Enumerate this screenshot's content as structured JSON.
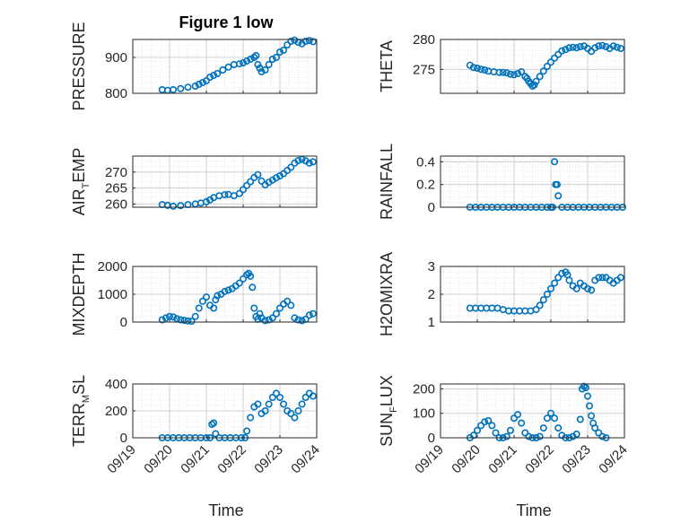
{
  "figure": {
    "title": "Figure 1 low",
    "x_label": "Time",
    "x_ticks": [
      "09/19",
      "09/20",
      "09/21",
      "09/22",
      "09/23",
      "09/24"
    ],
    "marker_color": "#0072bd"
  },
  "chart_data": [
    {
      "type": "scatter",
      "ylabel_main": "PRESSURE",
      "ylabel_sub": "",
      "ylabel_tail": "",
      "xlim": [
        0,
        5
      ],
      "ylim": [
        800,
        950
      ],
      "yticks": [
        "800",
        "900"
      ],
      "ytick_values": [
        800,
        900
      ],
      "x": [
        0.8,
        0.95,
        1.1,
        1.3,
        1.5,
        1.7,
        1.8,
        1.9,
        2.0,
        2.1,
        2.2,
        2.3,
        2.45,
        2.6,
        2.75,
        2.9,
        3.0,
        3.1,
        3.2,
        3.3,
        3.35,
        3.4,
        3.45,
        3.5,
        3.6,
        3.7,
        3.8,
        3.9,
        4.0,
        4.1,
        4.2,
        4.3,
        4.4,
        4.5,
        4.6,
        4.7,
        4.8,
        4.9
      ],
      "y": [
        810,
        808,
        810,
        813,
        817,
        820,
        825,
        830,
        835,
        845,
        850,
        855,
        865,
        873,
        880,
        882,
        885,
        890,
        895,
        900,
        905,
        880,
        870,
        860,
        865,
        880,
        895,
        900,
        915,
        920,
        935,
        945,
        948,
        942,
        938,
        945,
        947,
        944
      ]
    },
    {
      "type": "scatter",
      "ylabel_main": "THETA",
      "ylabel_sub": "",
      "ylabel_tail": "",
      "xlim": [
        0,
        5
      ],
      "ylim": [
        271,
        280
      ],
      "yticks": [
        "275",
        "280"
      ],
      "ytick_values": [
        275,
        280
      ],
      "x": [
        0.8,
        0.9,
        1.0,
        1.1,
        1.2,
        1.3,
        1.45,
        1.6,
        1.7,
        1.8,
        1.9,
        2.0,
        2.1,
        2.2,
        2.3,
        2.35,
        2.4,
        2.45,
        2.5,
        2.55,
        2.6,
        2.7,
        2.8,
        2.9,
        3.0,
        3.1,
        3.2,
        3.3,
        3.4,
        3.5,
        3.6,
        3.7,
        3.8,
        3.9,
        4.0,
        4.1,
        4.2,
        4.3,
        4.4,
        4.5,
        4.6,
        4.7,
        4.8,
        4.9
      ],
      "y": [
        275.7,
        275.3,
        275.2,
        275.0,
        274.9,
        274.7,
        274.6,
        274.5,
        274.5,
        274.4,
        274.2,
        274.1,
        274.3,
        274.6,
        273.8,
        273.5,
        273.0,
        272.6,
        272.2,
        272.4,
        273.0,
        273.8,
        274.7,
        275.5,
        276.2,
        276.9,
        277.5,
        278.1,
        278.3,
        278.6,
        278.7,
        278.6,
        278.8,
        278.9,
        278.5,
        278.0,
        278.6,
        278.9,
        279.0,
        278.8,
        278.5,
        278.9,
        278.7,
        278.5
      ]
    },
    {
      "type": "scatter",
      "ylabel_main": "AIR",
      "ylabel_sub": "T",
      "ylabel_tail": "EMP",
      "xlim": [
        0,
        5
      ],
      "ylim": [
        259,
        275
      ],
      "yticks": [
        "260",
        "265",
        "270"
      ],
      "ytick_values": [
        260,
        265,
        270
      ],
      "x": [
        0.8,
        0.95,
        1.1,
        1.3,
        1.5,
        1.7,
        1.85,
        2.0,
        2.1,
        2.2,
        2.35,
        2.5,
        2.6,
        2.75,
        2.9,
        3.0,
        3.1,
        3.2,
        3.3,
        3.4,
        3.5,
        3.6,
        3.7,
        3.8,
        3.9,
        4.0,
        4.1,
        4.2,
        4.3,
        4.4,
        4.5,
        4.6,
        4.7,
        4.8,
        4.9
      ],
      "y": [
        259.8,
        259.6,
        259.3,
        259.5,
        259.8,
        260.0,
        260.3,
        260.7,
        261.3,
        262.0,
        262.6,
        262.9,
        263.0,
        262.6,
        263.3,
        264.5,
        265.8,
        267.0,
        268.3,
        269.2,
        267.2,
        266.0,
        266.8,
        267.5,
        268.2,
        268.8,
        269.5,
        270.5,
        271.5,
        272.8,
        273.6,
        274.0,
        273.5,
        272.8,
        273.2
      ]
    },
    {
      "type": "scatter",
      "ylabel_main": "RAINFALL",
      "ylabel_sub": "",
      "ylabel_tail": "",
      "xlim": [
        0,
        5
      ],
      "ylim": [
        0,
        0.45
      ],
      "yticks": [
        "0",
        "0.2",
        "0.4"
      ],
      "ytick_values": [
        0,
        0.2,
        0.4
      ],
      "x": [
        0.8,
        0.95,
        1.1,
        1.25,
        1.4,
        1.55,
        1.7,
        1.85,
        2.0,
        2.15,
        2.3,
        2.45,
        2.6,
        2.75,
        2.9,
        3.0,
        3.05,
        3.1,
        3.13,
        3.17,
        3.2,
        3.3,
        3.45,
        3.6,
        3.75,
        3.9,
        4.05,
        4.2,
        4.35,
        4.5,
        4.65,
        4.8,
        4.95
      ],
      "y": [
        0,
        0,
        0,
        0,
        0,
        0,
        0,
        0,
        0,
        0,
        0,
        0,
        0,
        0,
        0,
        0,
        0,
        0.4,
        0.2,
        0.2,
        0.1,
        0,
        0,
        0,
        0,
        0,
        0,
        0,
        0,
        0,
        0,
        0,
        0
      ]
    },
    {
      "type": "scatter",
      "ylabel_main": "MIXDEPTH",
      "ylabel_sub": "",
      "ylabel_tail": "",
      "xlim": [
        0,
        5
      ],
      "ylim": [
        0,
        2000
      ],
      "yticks": [
        "0",
        "1000",
        "2000"
      ],
      "ytick_values": [
        0,
        1000,
        2000
      ],
      "x": [
        0.8,
        0.9,
        1.0,
        1.1,
        1.2,
        1.3,
        1.4,
        1.5,
        1.6,
        1.7,
        1.8,
        1.9,
        2.0,
        2.1,
        2.2,
        2.25,
        2.3,
        2.4,
        2.5,
        2.6,
        2.7,
        2.8,
        2.9,
        3.0,
        3.1,
        3.15,
        3.2,
        3.25,
        3.3,
        3.35,
        3.4,
        3.45,
        3.5,
        3.6,
        3.7,
        3.8,
        3.9,
        4.0,
        4.1,
        4.2,
        4.3,
        4.4,
        4.5,
        4.6,
        4.7,
        4.8,
        4.9
      ],
      "y": [
        80,
        150,
        200,
        180,
        120,
        80,
        60,
        40,
        30,
        200,
        500,
        750,
        900,
        600,
        500,
        800,
        950,
        1000,
        1100,
        1150,
        1200,
        1300,
        1400,
        1550,
        1700,
        1750,
        1650,
        1250,
        500,
        200,
        100,
        300,
        150,
        50,
        80,
        150,
        300,
        500,
        650,
        750,
        600,
        150,
        80,
        50,
        100,
        250,
        300
      ]
    },
    {
      "type": "scatter",
      "ylabel_main": "H2OMIXRA",
      "ylabel_sub": "",
      "ylabel_tail": "",
      "xlim": [
        0,
        5
      ],
      "ylim": [
        1,
        3
      ],
      "yticks": [
        "1",
        "2",
        "3"
      ],
      "ytick_values": [
        1,
        2,
        3
      ],
      "x": [
        0.8,
        0.95,
        1.1,
        1.25,
        1.4,
        1.55,
        1.7,
        1.85,
        2.0,
        2.15,
        2.3,
        2.45,
        2.6,
        2.7,
        2.8,
        2.9,
        3.0,
        3.1,
        3.2,
        3.3,
        3.4,
        3.45,
        3.5,
        3.6,
        3.7,
        3.8,
        3.9,
        4.0,
        4.1,
        4.2,
        4.3,
        4.4,
        4.5,
        4.6,
        4.7,
        4.8,
        4.9
      ],
      "y": [
        1.5,
        1.5,
        1.5,
        1.5,
        1.5,
        1.5,
        1.45,
        1.4,
        1.4,
        1.4,
        1.4,
        1.4,
        1.45,
        1.6,
        1.8,
        2.0,
        2.2,
        2.4,
        2.6,
        2.75,
        2.8,
        2.7,
        2.5,
        2.3,
        2.2,
        2.4,
        2.3,
        2.2,
        2.15,
        2.5,
        2.6,
        2.6,
        2.6,
        2.5,
        2.4,
        2.5,
        2.6
      ]
    },
    {
      "type": "scatter",
      "ylabel_main": "TERR",
      "ylabel_sub": "M",
      "ylabel_tail": "SL",
      "xlim": [
        0,
        5
      ],
      "ylim": [
        0,
        400
      ],
      "yticks": [
        "0",
        "200",
        "400"
      ],
      "ytick_values": [
        0,
        200,
        400
      ],
      "x": [
        0.8,
        0.95,
        1.1,
        1.25,
        1.4,
        1.55,
        1.7,
        1.85,
        2.0,
        2.1,
        2.15,
        2.2,
        2.25,
        2.35,
        2.5,
        2.65,
        2.8,
        2.95,
        3.05,
        3.1,
        3.2,
        3.3,
        3.4,
        3.5,
        3.6,
        3.7,
        3.8,
        3.9,
        4.0,
        4.1,
        4.2,
        4.3,
        4.4,
        4.5,
        4.6,
        4.7,
        4.8,
        4.9
      ],
      "y": [
        0,
        0,
        0,
        0,
        0,
        0,
        0,
        0,
        0,
        0,
        100,
        110,
        30,
        0,
        0,
        0,
        0,
        0,
        0,
        50,
        150,
        230,
        250,
        180,
        200,
        250,
        300,
        330,
        300,
        250,
        200,
        180,
        150,
        200,
        250,
        300,
        330,
        310
      ]
    },
    {
      "type": "scatter",
      "ylabel_main": "SUN",
      "ylabel_sub": "F",
      "ylabel_tail": "LUX",
      "xlim": [
        0,
        5
      ],
      "ylim": [
        0,
        220
      ],
      "yticks": [
        "0",
        "100",
        "200"
      ],
      "ytick_values": [
        0,
        100,
        200
      ],
      "x": [
        0.8,
        0.9,
        1.0,
        1.1,
        1.2,
        1.3,
        1.4,
        1.5,
        1.6,
        1.7,
        1.8,
        1.9,
        2.0,
        2.1,
        2.2,
        2.3,
        2.4,
        2.5,
        2.6,
        2.7,
        2.8,
        2.9,
        3.0,
        3.1,
        3.2,
        3.3,
        3.4,
        3.5,
        3.6,
        3.7,
        3.8,
        3.85,
        3.9,
        3.95,
        4.0,
        4.05,
        4.1,
        4.15,
        4.2,
        4.3,
        4.4,
        4.5
      ],
      "y": [
        0,
        10,
        30,
        50,
        65,
        70,
        50,
        20,
        0,
        0,
        5,
        30,
        80,
        95,
        60,
        20,
        5,
        0,
        0,
        5,
        40,
        80,
        100,
        80,
        40,
        10,
        0,
        0,
        5,
        15,
        75,
        200,
        210,
        205,
        170,
        130,
        90,
        60,
        40,
        20,
        5,
        0
      ]
    }
  ]
}
